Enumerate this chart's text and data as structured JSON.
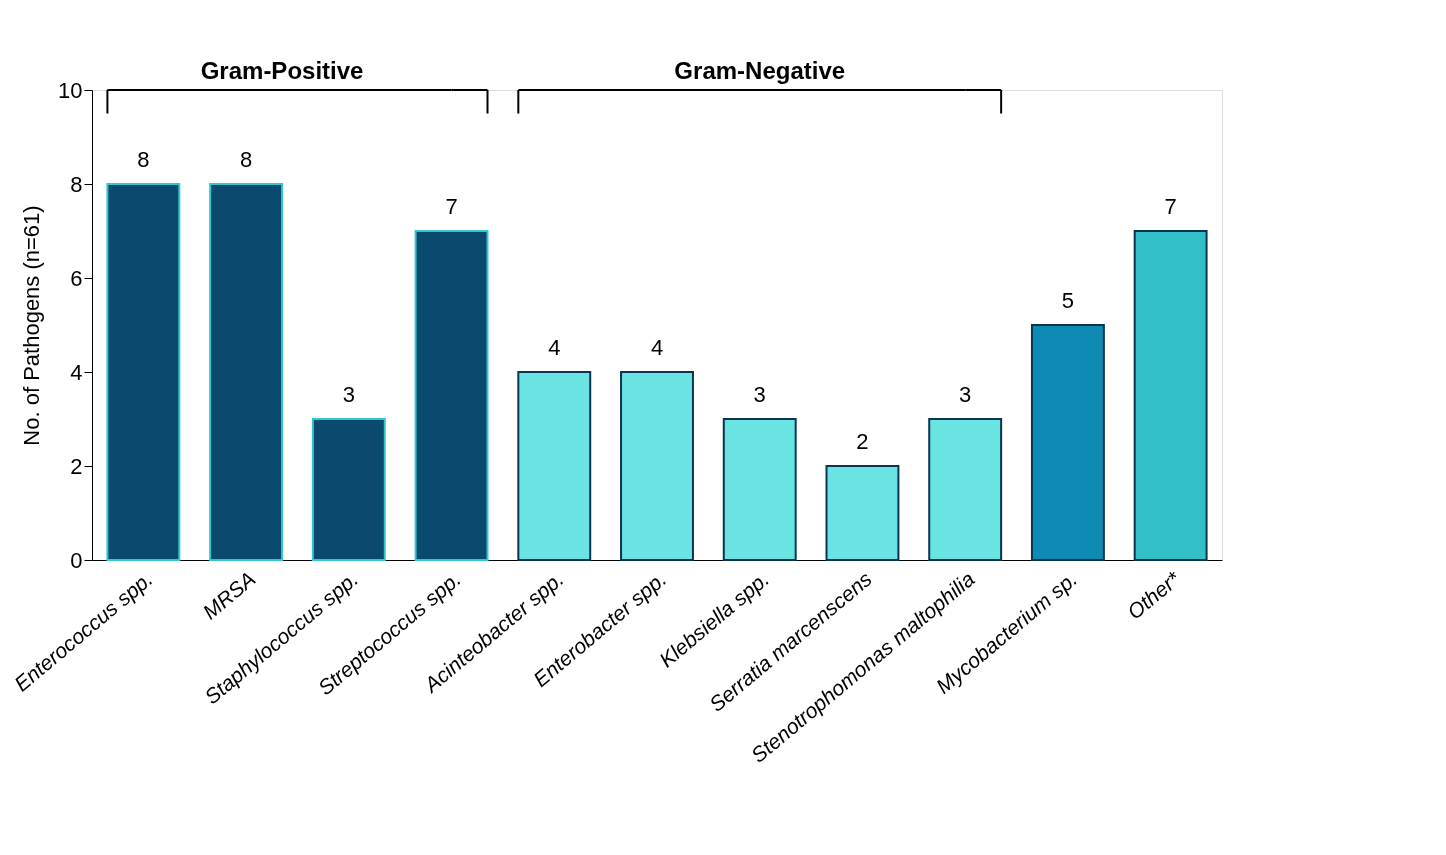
{
  "chart_data": {
    "type": "bar",
    "ylabel": "No. of Pathogens (n=61)",
    "categories": [
      "Enterococcus spp.",
      "MRSA",
      "Staphylococcus spp.",
      "Streptococcus spp.",
      "Acinteobacter spp.",
      "Enterobacter spp.",
      "Klebsiella spp.",
      "Serratia marcenscens",
      "Stenotrophomonas maltophilia",
      "Mycobacterium sp.",
      "Other*"
    ],
    "values": [
      8,
      8,
      3,
      7,
      4,
      4,
      3,
      2,
      3,
      5,
      7
    ],
    "colors": [
      "#0a4a6e",
      "#0a4a6e",
      "#0a4a6e",
      "#0a4a6e",
      "#6ae4e2",
      "#6ae4e2",
      "#6ae4e2",
      "#6ae4e2",
      "#6ae4e2",
      "#0e8ab5",
      "#33bfc6"
    ],
    "ylim": [
      0,
      10
    ],
    "yticks": [
      0,
      2,
      4,
      6,
      8,
      10
    ],
    "grid": false,
    "data_labels": true,
    "annotations": [
      "Gram-Positive",
      "Gram-Negative"
    ]
  }
}
